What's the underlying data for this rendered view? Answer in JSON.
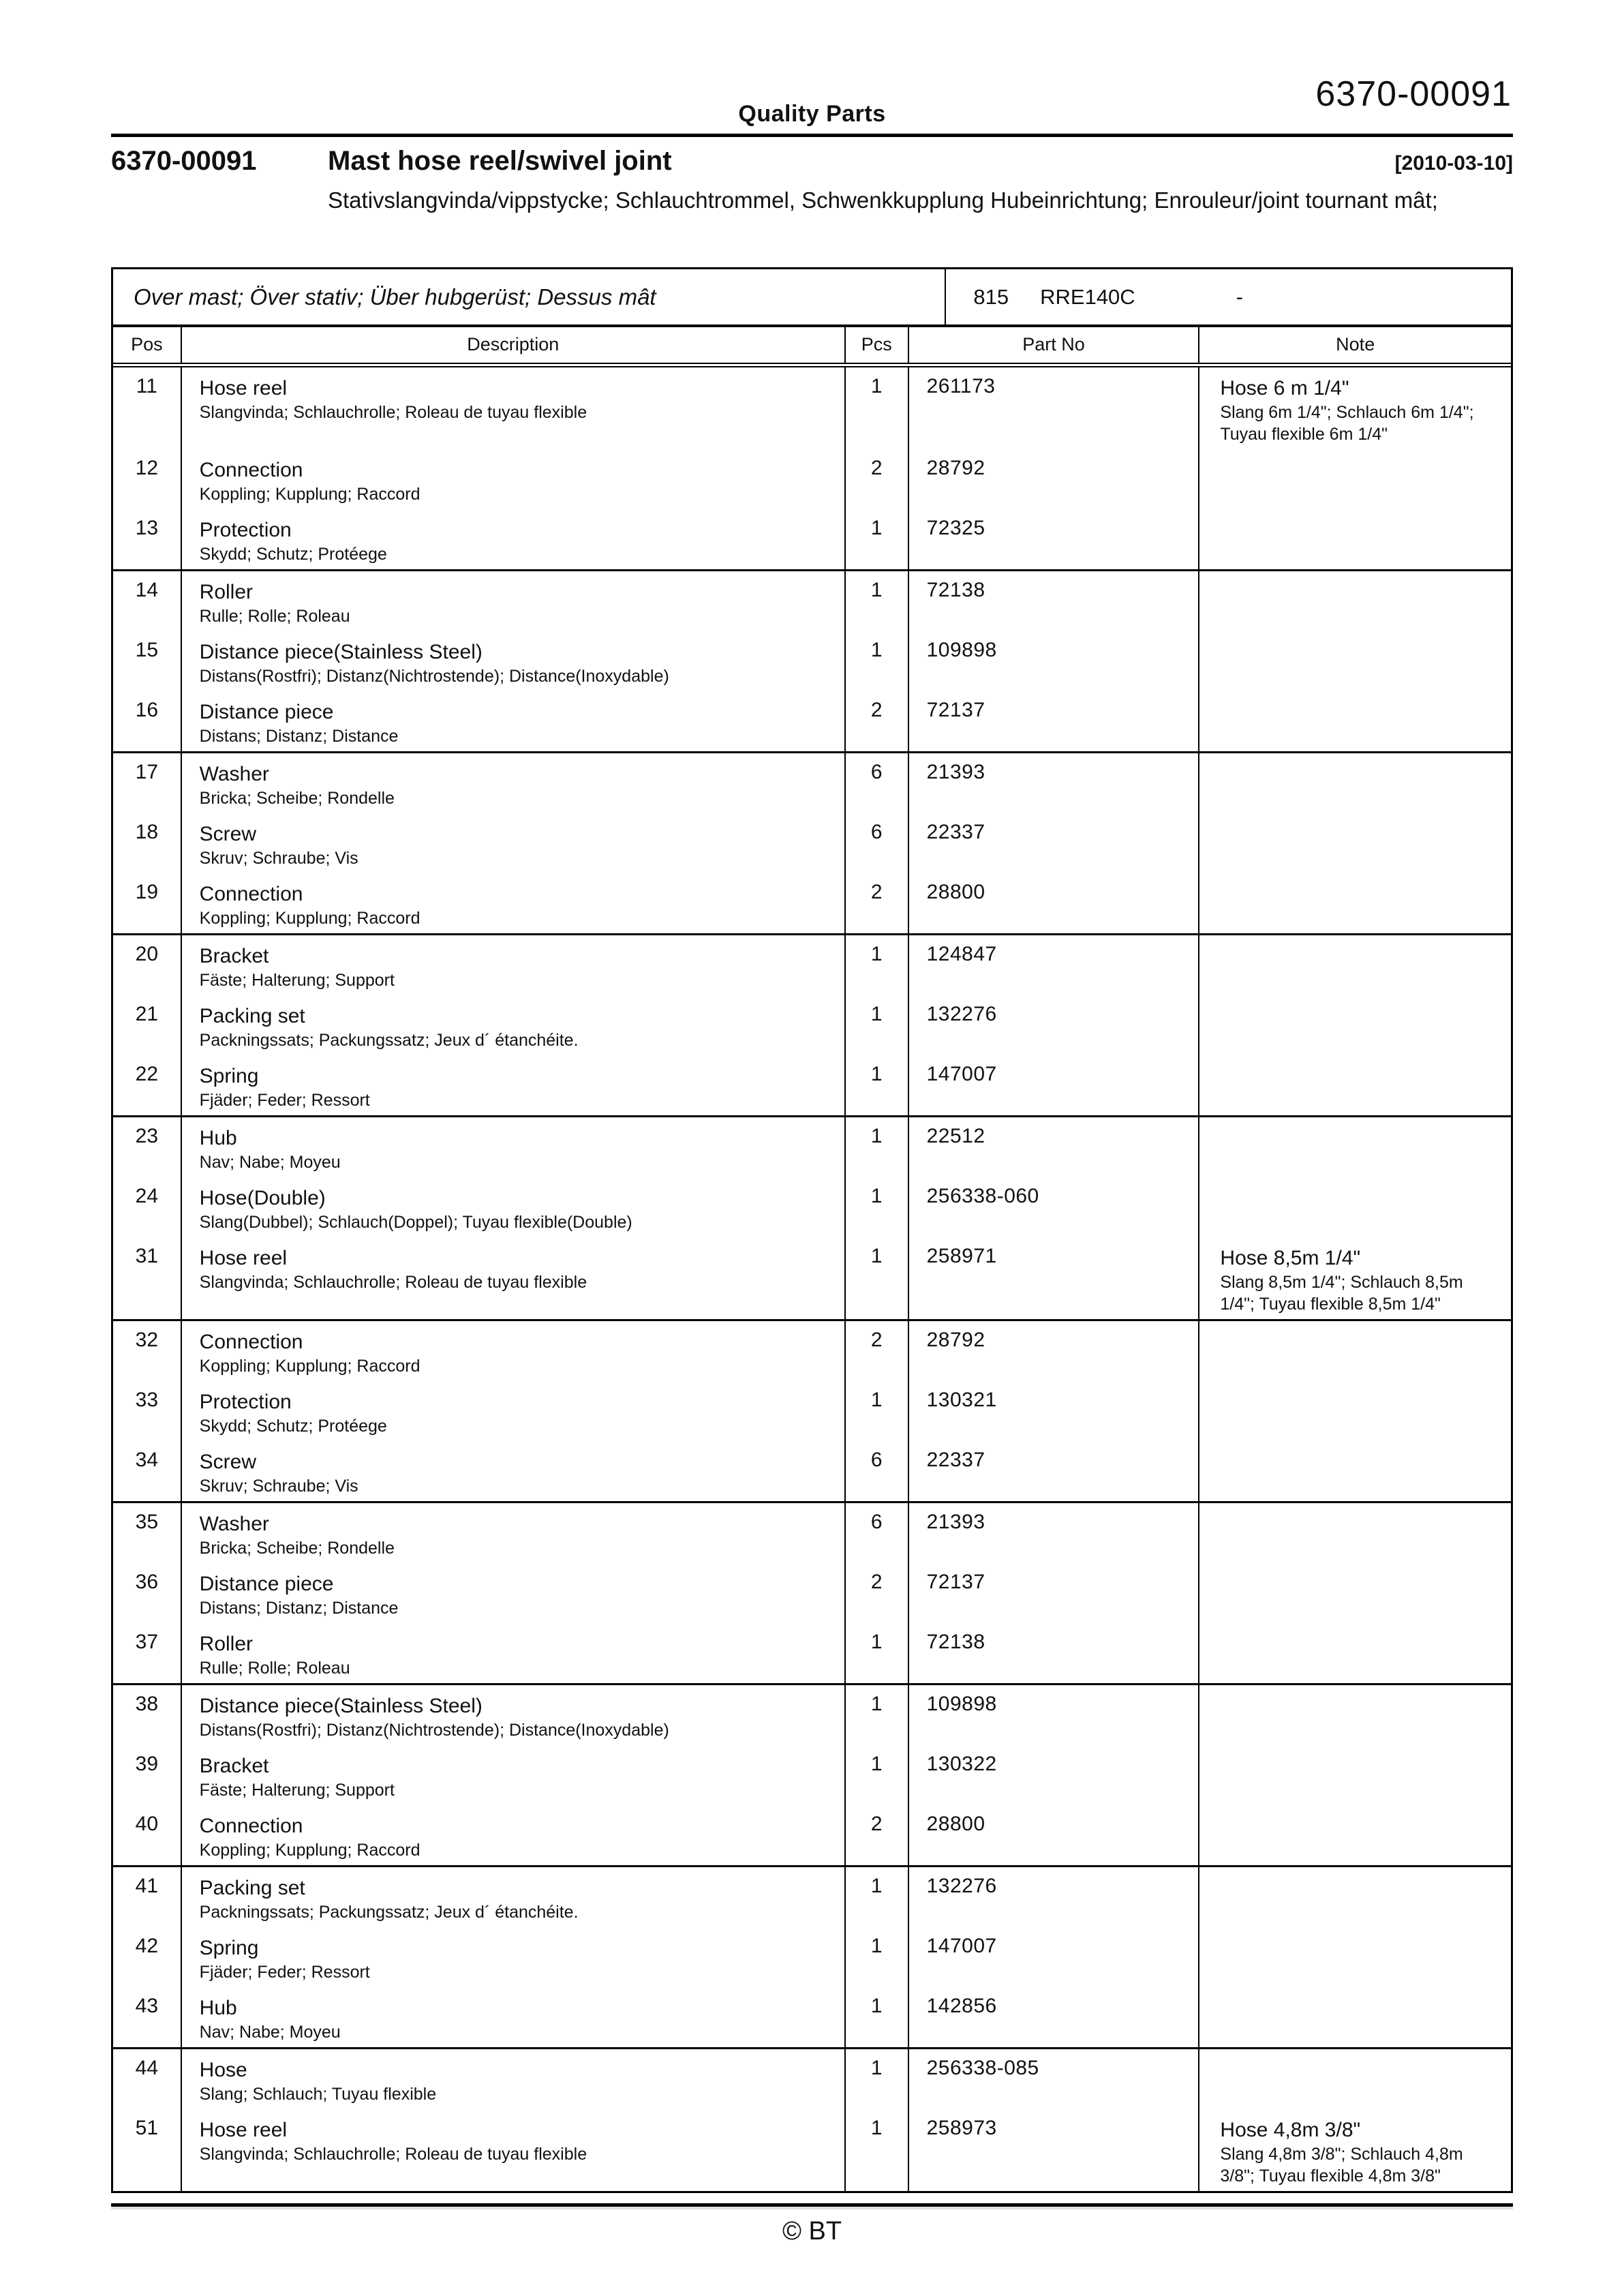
{
  "header": {
    "center_title": "Quality Parts",
    "doc_number": "6370-00091",
    "section_number": "6370-00091",
    "title": "Mast hose reel/swivel joint",
    "date": "[2010-03-10]",
    "subtitle": "Stativslangvinda/vippstycke; Schlauchtrommel, Schwenkkupplung Hubeinrichtung; Enrouleur/joint tournant mât;"
  },
  "table": {
    "section": {
      "label": "Over mast; Över stativ; Über hubgerüst; Dessus mât",
      "code": "815",
      "model": "RRE140C",
      "variant": "-"
    },
    "columns": [
      "Pos",
      "Description",
      "Pcs",
      "Part No",
      "Note"
    ],
    "groups": [
      {
        "rows": [
          {
            "pos": "11",
            "desc": "Hose reel",
            "sub": "Slangvinda; Schlauchrolle; Roleau de tuyau flexible",
            "pcs": "1",
            "part": "261173",
            "note": "Hose 6 m 1/4\"",
            "note_sub": "Slang 6m 1/4\"; Schlauch 6m 1/4\"; Tuyau flexible 6m 1/4\""
          },
          {
            "pos": "12",
            "desc": "Connection",
            "sub": "Koppling; Kupplung; Raccord",
            "pcs": "2",
            "part": "28792",
            "note": "",
            "note_sub": ""
          },
          {
            "pos": "13",
            "desc": "Protection",
            "sub": "Skydd; Schutz; Protéege",
            "pcs": "1",
            "part": "72325",
            "note": "",
            "note_sub": ""
          }
        ]
      },
      {
        "rows": [
          {
            "pos": "14",
            "desc": "Roller",
            "sub": "Rulle; Rolle; Roleau",
            "pcs": "1",
            "part": "72138",
            "note": "",
            "note_sub": ""
          },
          {
            "pos": "15",
            "desc": "Distance piece(Stainless Steel)",
            "sub": "Distans(Rostfri); Distanz(Nichtrostende); Distance(Inoxydable)",
            "pcs": "1",
            "part": "109898",
            "note": "",
            "note_sub": ""
          },
          {
            "pos": "16",
            "desc": "Distance piece",
            "sub": "Distans; Distanz; Distance",
            "pcs": "2",
            "part": "72137",
            "note": "",
            "note_sub": ""
          }
        ]
      },
      {
        "rows": [
          {
            "pos": "17",
            "desc": "Washer",
            "sub": "Bricka; Scheibe; Rondelle",
            "pcs": "6",
            "part": "21393",
            "note": "",
            "note_sub": ""
          },
          {
            "pos": "18",
            "desc": "Screw",
            "sub": "Skruv; Schraube; Vis",
            "pcs": "6",
            "part": "22337",
            "note": "",
            "note_sub": ""
          },
          {
            "pos": "19",
            "desc": "Connection",
            "sub": "Koppling; Kupplung; Raccord",
            "pcs": "2",
            "part": "28800",
            "note": "",
            "note_sub": ""
          }
        ]
      },
      {
        "rows": [
          {
            "pos": "20",
            "desc": "Bracket",
            "sub": "Fäste; Halterung; Support",
            "pcs": "1",
            "part": "124847",
            "note": "",
            "note_sub": ""
          },
          {
            "pos": "21",
            "desc": "Packing set",
            "sub": "Packningssats; Packungssatz; Jeux d´ étanchéite.",
            "pcs": "1",
            "part": "132276",
            "note": "",
            "note_sub": ""
          },
          {
            "pos": "22",
            "desc": "Spring",
            "sub": "Fjäder; Feder; Ressort",
            "pcs": "1",
            "part": "147007",
            "note": "",
            "note_sub": ""
          }
        ]
      },
      {
        "rows": [
          {
            "pos": "23",
            "desc": "Hub",
            "sub": "Nav; Nabe; Moyeu",
            "pcs": "1",
            "part": "22512",
            "note": "",
            "note_sub": ""
          },
          {
            "pos": "24",
            "desc": "Hose(Double)",
            "sub": "Slang(Dubbel); Schlauch(Doppel); Tuyau flexible(Double)",
            "pcs": "1",
            "part": "256338-060",
            "note": "",
            "note_sub": ""
          },
          {
            "pos": "31",
            "desc": "Hose reel",
            "sub": "Slangvinda; Schlauchrolle; Roleau de tuyau flexible",
            "pcs": "1",
            "part": "258971",
            "note": "Hose 8,5m 1/4\"",
            "note_sub": "Slang 8,5m 1/4\"; Schlauch 8,5m 1/4\"; Tuyau flexible 8,5m 1/4\""
          }
        ]
      },
      {
        "rows": [
          {
            "pos": "32",
            "desc": "Connection",
            "sub": "Koppling; Kupplung; Raccord",
            "pcs": "2",
            "part": "28792",
            "note": "",
            "note_sub": ""
          },
          {
            "pos": "33",
            "desc": "Protection",
            "sub": "Skydd; Schutz; Protéege",
            "pcs": "1",
            "part": "130321",
            "note": "",
            "note_sub": ""
          },
          {
            "pos": "34",
            "desc": "Screw",
            "sub": "Skruv; Schraube; Vis",
            "pcs": "6",
            "part": "22337",
            "note": "",
            "note_sub": ""
          }
        ]
      },
      {
        "rows": [
          {
            "pos": "35",
            "desc": "Washer",
            "sub": "Bricka; Scheibe; Rondelle",
            "pcs": "6",
            "part": "21393",
            "note": "",
            "note_sub": ""
          },
          {
            "pos": "36",
            "desc": "Distance piece",
            "sub": "Distans; Distanz; Distance",
            "pcs": "2",
            "part": "72137",
            "note": "",
            "note_sub": ""
          },
          {
            "pos": "37",
            "desc": "Roller",
            "sub": "Rulle; Rolle; Roleau",
            "pcs": "1",
            "part": "72138",
            "note": "",
            "note_sub": ""
          }
        ]
      },
      {
        "rows": [
          {
            "pos": "38",
            "desc": "Distance piece(Stainless Steel)",
            "sub": "Distans(Rostfri); Distanz(Nichtrostende); Distance(Inoxydable)",
            "pcs": "1",
            "part": "109898",
            "note": "",
            "note_sub": ""
          },
          {
            "pos": "39",
            "desc": "Bracket",
            "sub": "Fäste; Halterung; Support",
            "pcs": "1",
            "part": "130322",
            "note": "",
            "note_sub": ""
          },
          {
            "pos": "40",
            "desc": "Connection",
            "sub": "Koppling; Kupplung; Raccord",
            "pcs": "2",
            "part": "28800",
            "note": "",
            "note_sub": ""
          }
        ]
      },
      {
        "rows": [
          {
            "pos": "41",
            "desc": "Packing set",
            "sub": "Packningssats; Packungssatz; Jeux d´ étanchéite.",
            "pcs": "1",
            "part": "132276",
            "note": "",
            "note_sub": ""
          },
          {
            "pos": "42",
            "desc": "Spring",
            "sub": "Fjäder; Feder; Ressort",
            "pcs": "1",
            "part": "147007",
            "note": "",
            "note_sub": ""
          },
          {
            "pos": "43",
            "desc": "Hub",
            "sub": "Nav; Nabe; Moyeu",
            "pcs": "1",
            "part": "142856",
            "note": "",
            "note_sub": ""
          }
        ]
      },
      {
        "rows": [
          {
            "pos": "44",
            "desc": "Hose",
            "sub": "Slang; Schlauch; Tuyau flexible",
            "pcs": "1",
            "part": "256338-085",
            "note": "",
            "note_sub": ""
          },
          {
            "pos": "51",
            "desc": "Hose reel",
            "sub": "Slangvinda; Schlauchrolle; Roleau de tuyau flexible",
            "pcs": "1",
            "part": "258973",
            "note": "Hose 4,8m 3/8\"",
            "note_sub": "Slang 4,8m 3/8\"; Schlauch 4,8m 3/8\"; Tuyau flexible 4,8m 3/8\""
          }
        ]
      }
    ]
  },
  "footer": {
    "copyright": "© BT"
  }
}
